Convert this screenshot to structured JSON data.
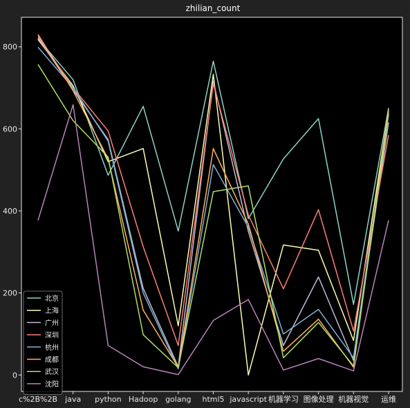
{
  "chart_data": {
    "type": "line",
    "title": "zhilian_count",
    "xlabel": "",
    "ylabel": "",
    "categories": [
      "c%2B%2B",
      "java",
      "python",
      "Hadoop",
      "golang",
      "html5",
      "javascript",
      "机器学习",
      "图像处理",
      "机器视觉",
      "运维"
    ],
    "yticks": [
      0,
      200,
      400,
      600,
      800
    ],
    "ylim": [
      -40,
      872
    ],
    "legend_position": "lower-left",
    "background": "#000000",
    "figure_background": "#222222",
    "series": [
      {
        "name": "北京",
        "color": "#8dd3c7",
        "values": [
          820,
          720,
          487,
          655,
          351,
          765,
          381,
          527,
          625,
          172,
          651
        ]
      },
      {
        "name": "上海",
        "color": "#feffb3",
        "values": [
          818,
          705,
          520,
          552,
          120,
          733,
          0,
          317,
          304,
          84,
          644
        ]
      },
      {
        "name": "广州",
        "color": "#bfbbd9",
        "values": [
          822,
          695,
          574,
          211,
          20,
          716,
          350,
          72,
          239,
          35,
          616
        ]
      },
      {
        "name": "深圳",
        "color": "#fa8174",
        "values": [
          826,
          700,
          595,
          313,
          72,
          710,
          390,
          210,
          403,
          107,
          585
        ]
      },
      {
        "name": "杭州",
        "color": "#81b1d2",
        "values": [
          799,
          700,
          570,
          200,
          15,
          513,
          360,
          100,
          160,
          42,
          636
        ]
      },
      {
        "name": "成都",
        "color": "#fdb462",
        "values": [
          830,
          693,
          527,
          158,
          19,
          552,
          368,
          58,
          136,
          19,
          648
        ]
      },
      {
        "name": "武汉",
        "color": "#b3de69",
        "values": [
          757,
          620,
          531,
          98,
          18,
          447,
          461,
          42,
          128,
          22,
          637
        ]
      },
      {
        "name": "沈阳",
        "color": "#bc82bd",
        "values": [
          377,
          659,
          72,
          20,
          1,
          133,
          184,
          12,
          40,
          10,
          377
        ]
      }
    ]
  }
}
